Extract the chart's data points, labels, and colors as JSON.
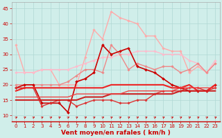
{
  "xlabel": "Vent moyen/en rafales ( km/h )",
  "bg_color": "#d0eeea",
  "grid_color": "#b0d8d4",
  "x_values": [
    0,
    1,
    2,
    3,
    4,
    5,
    6,
    7,
    8,
    9,
    10,
    11,
    12,
    13,
    14,
    15,
    16,
    17,
    18,
    19,
    20,
    21,
    22,
    23
  ],
  "series": [
    {
      "y": [
        33,
        24,
        24,
        25,
        25,
        20,
        20,
        20,
        29,
        38,
        35,
        44,
        42,
        41,
        40,
        36,
        36,
        32,
        31,
        31,
        24,
        26,
        24,
        27
      ],
      "color": "#ffaaaa",
      "lw": 1.0,
      "marker": "D",
      "ms": 1.8
    },
    {
      "y": [
        24,
        24,
        24,
        25,
        25,
        25,
        25,
        26,
        27,
        28,
        29,
        29,
        30,
        30,
        31,
        31,
        31,
        30,
        30,
        30,
        28,
        27,
        24,
        28
      ],
      "color": "#ffbbcc",
      "lw": 1.0,
      "marker": "D",
      "ms": 1.8
    },
    {
      "y": [
        20,
        20,
        20,
        20,
        20,
        20,
        21,
        23,
        25,
        25,
        24,
        33,
        30,
        25,
        27,
        26,
        25,
        26,
        26,
        24,
        25,
        27,
        24,
        27
      ],
      "color": "#ee8888",
      "lw": 1.0,
      "marker": "D",
      "ms": 1.8
    },
    {
      "y": [
        19,
        20,
        20,
        14,
        14,
        14,
        11,
        21,
        22,
        24,
        33,
        30,
        31,
        32,
        26,
        25,
        24,
        22,
        20,
        19,
        18,
        18,
        18,
        20
      ],
      "color": "#cc0000",
      "lw": 1.2,
      "marker": "D",
      "ms": 2.0
    },
    {
      "y": [
        19,
        19,
        19,
        13,
        14,
        15,
        15,
        13,
        14,
        15,
        15,
        15,
        14,
        14,
        15,
        15,
        17,
        18,
        18,
        18,
        19,
        19,
        18,
        19
      ],
      "color": "#dd3333",
      "lw": 1.0,
      "marker": "D",
      "ms": 1.8
    },
    {
      "y": [
        18,
        19,
        19,
        19,
        19,
        19,
        19,
        19,
        19,
        19,
        19,
        20,
        20,
        20,
        20,
        20,
        20,
        20,
        19,
        19,
        20,
        18,
        18,
        20
      ],
      "color": "#ee2222",
      "lw": 1.5,
      "marker": null,
      "ms": 0
    },
    {
      "y": [
        15,
        15,
        15,
        15,
        15,
        15,
        15,
        15,
        16,
        16,
        16,
        17,
        17,
        17,
        17,
        17,
        17,
        17,
        17,
        18,
        18,
        18,
        18,
        18
      ],
      "color": "#cc2222",
      "lw": 1.5,
      "marker": null,
      "ms": 0
    },
    {
      "y": [
        16,
        16,
        16,
        16,
        16,
        16,
        16,
        17,
        17,
        17,
        17,
        17,
        17,
        18,
        18,
        18,
        18,
        18,
        18,
        19,
        19,
        19,
        19,
        19
      ],
      "color": "#ee4444",
      "lw": 1.0,
      "marker": null,
      "ms": 0
    }
  ],
  "ylim": [
    8,
    47
  ],
  "yticks": [
    10,
    15,
    20,
    25,
    30,
    35,
    40,
    45
  ],
  "xticks": [
    0,
    1,
    2,
    3,
    4,
    5,
    6,
    7,
    8,
    9,
    10,
    11,
    12,
    13,
    14,
    15,
    16,
    17,
    18,
    19,
    20,
    21,
    22,
    23
  ],
  "xlabel_fontsize": 6.5,
  "tick_fontsize": 5.0
}
